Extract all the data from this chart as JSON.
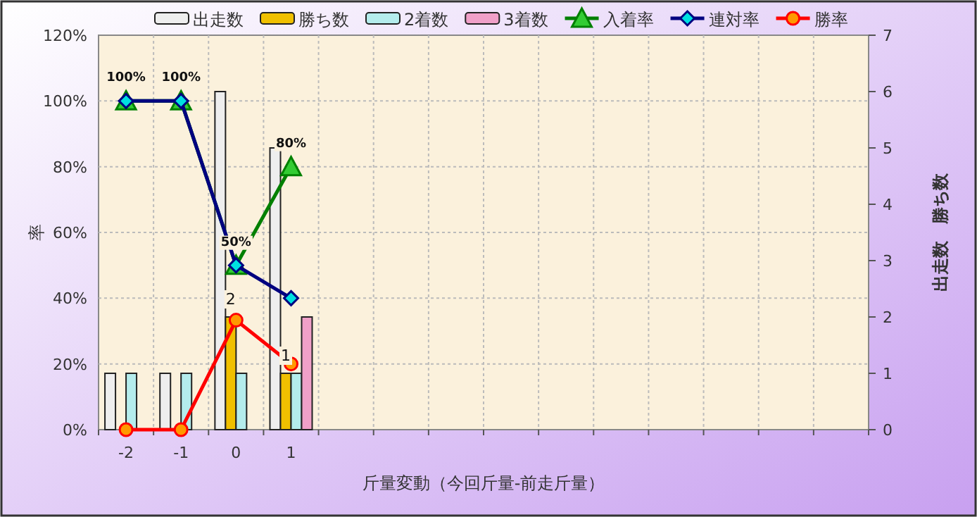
{
  "chart_data": {
    "type": "bar",
    "xlabel": "斤量変動（今回斤量-前走斤量）",
    "ylabel": "率",
    "y2label": "出走数　勝ち数",
    "categories": [
      "-2",
      "-1",
      "0",
      "1",
      null,
      null,
      null,
      null,
      null,
      null,
      null,
      null,
      null,
      null
    ],
    "series": [
      {
        "name": "出走数",
        "axis": "y2",
        "color": "#eeeeee",
        "values": [
          1,
          1,
          6,
          5,
          null,
          null,
          null,
          null,
          null,
          null,
          null,
          null,
          null,
          null
        ]
      },
      {
        "name": "勝ち数",
        "axis": "y2",
        "color": "#f0c000",
        "values": [
          0,
          0,
          2,
          1,
          null,
          null,
          null,
          null,
          null,
          null,
          null,
          null,
          null,
          null
        ],
        "value_labels": [
          null,
          null,
          "2",
          "1",
          null,
          null,
          null,
          null,
          null,
          null,
          null,
          null,
          null,
          null
        ]
      },
      {
        "name": "2着数",
        "axis": "y2",
        "color": "#b4ecec",
        "values": [
          1,
          1,
          1,
          1,
          null,
          null,
          null,
          null,
          null,
          null,
          null,
          null,
          null,
          null
        ]
      },
      {
        "name": "3着数",
        "axis": "y2",
        "color": "#f0a0c8",
        "values": [
          0,
          0,
          0,
          2,
          null,
          null,
          null,
          null,
          null,
          null,
          null,
          null,
          null,
          null
        ]
      },
      {
        "name": "入着率",
        "type": "line",
        "color": "#008000",
        "marker": "triangle",
        "values": [
          100,
          100,
          50,
          80,
          null,
          null,
          null,
          null,
          null,
          null,
          null,
          null,
          null,
          null
        ],
        "value_labels": [
          "100%",
          "100%",
          "50%",
          "80%",
          null,
          null,
          null,
          null,
          null,
          null,
          null,
          null,
          null,
          null
        ]
      },
      {
        "name": "連対率",
        "type": "line",
        "color": "#000080",
        "marker": "diamond",
        "values": [
          100,
          100,
          50,
          40,
          null,
          null,
          null,
          null,
          null,
          null,
          null,
          null,
          null,
          null
        ]
      },
      {
        "name": "勝率",
        "type": "line",
        "color": "#ff0000",
        "marker": "circle",
        "values": [
          0,
          0,
          33.3,
          20,
          null,
          null,
          null,
          null,
          null,
          null,
          null,
          null,
          null,
          null
        ]
      }
    ],
    "ylim": [
      0,
      120
    ],
    "yticks": [
      {
        "value": 0,
        "label": "0%"
      },
      {
        "value": 20,
        "label": "20%"
      },
      {
        "value": 40,
        "label": "40%"
      },
      {
        "value": 60,
        "label": "60%"
      },
      {
        "value": 80,
        "label": "80%"
      },
      {
        "value": 100,
        "label": "100%"
      },
      {
        "value": 120,
        "label": "120%"
      }
    ],
    "y2lim": [
      0,
      7
    ],
    "y2ticks": [
      0,
      1,
      2,
      3,
      4,
      5,
      6,
      7
    ],
    "grid": true,
    "legend": "top"
  }
}
